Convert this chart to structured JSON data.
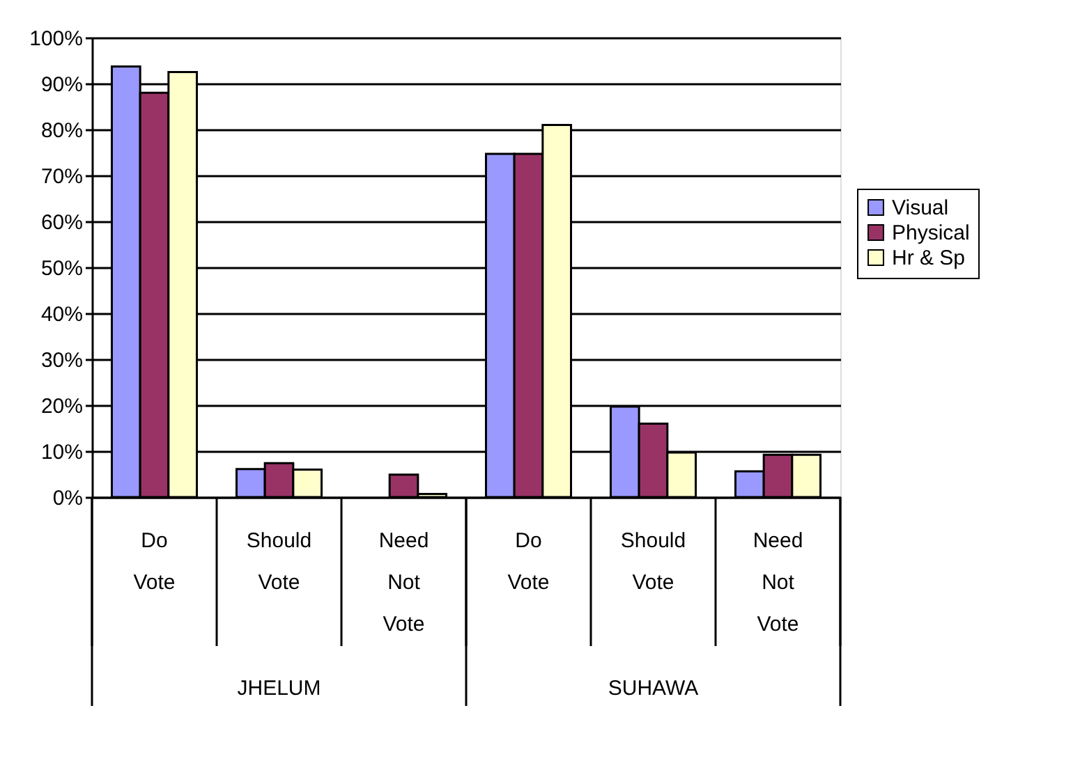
{
  "chart_data": {
    "type": "bar",
    "categories": [
      "Do Vote",
      "Should Vote",
      "Need Not Vote",
      "Do Vote",
      "Should Vote",
      "Need Not Vote"
    ],
    "series": [
      {
        "name": "Visual",
        "color": "#9999ff",
        "values": [
          93.7,
          6.1,
          0,
          74.7,
          19.7,
          5.6
        ]
      },
      {
        "name": "Physical",
        "color": "#993366",
        "values": [
          88,
          7.4,
          4.9,
          74.7,
          16,
          9.2
        ]
      },
      {
        "name": "Hr & Sp",
        "color": "#ffffcc",
        "values": [
          92.5,
          6,
          0.7,
          81,
          9.7,
          9.2
        ]
      }
    ],
    "annotations": [
      "JHELUM",
      "SUHAWA"
    ],
    "ylim": [
      0,
      100
    ],
    "yticks": [
      {
        "value": 0,
        "label": "0%"
      },
      {
        "value": 10,
        "label": "10%"
      },
      {
        "value": 20,
        "label": "20%"
      },
      {
        "value": 30,
        "label": "30%"
      },
      {
        "value": 40,
        "label": "40%"
      },
      {
        "value": 50,
        "label": "50%"
      },
      {
        "value": 60,
        "label": "60%"
      },
      {
        "value": 70,
        "label": "70%"
      },
      {
        "value": 80,
        "label": "80%"
      },
      {
        "value": 90,
        "label": "90%"
      },
      {
        "value": 100,
        "label": "100%"
      }
    ],
    "grid": "y",
    "legend": "right"
  }
}
